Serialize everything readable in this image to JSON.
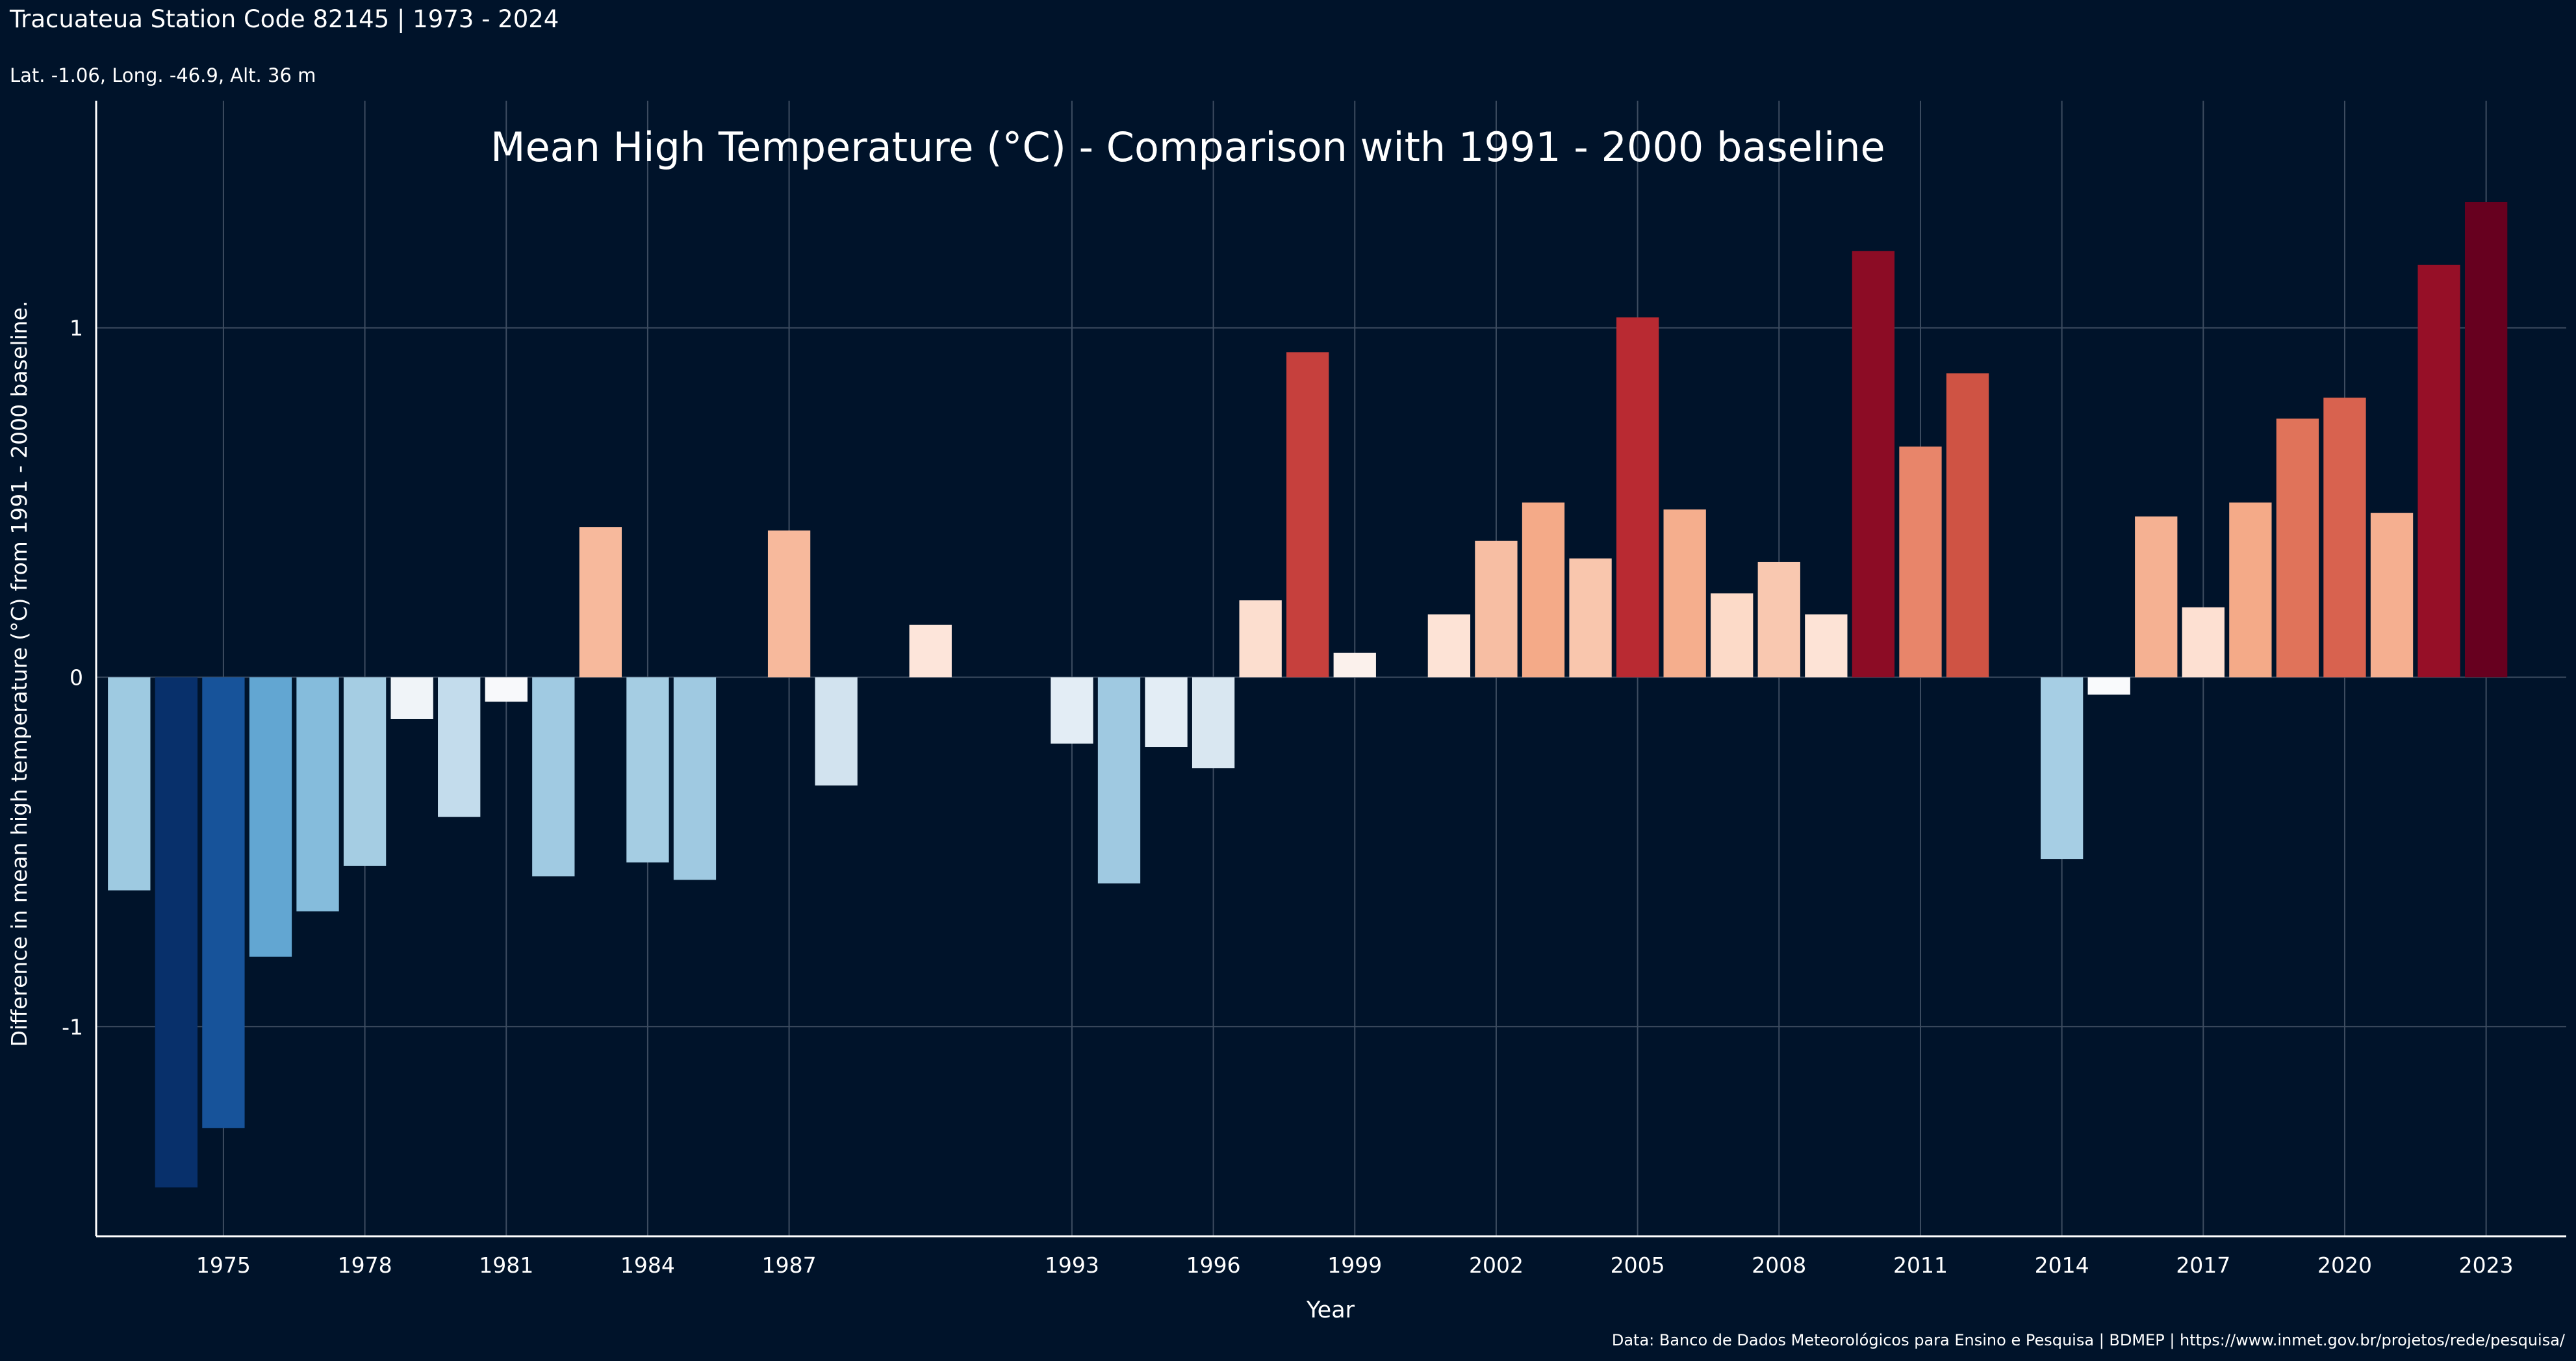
{
  "header": {
    "station_title": "Tracuateua Station Code 82145 | 1973 - 2024",
    "station_coords": "Lat. -1.06, Long. -46.9, Alt. 36 m"
  },
  "footer": {
    "source": "Data: Banco de Dados Meteorológicos para Ensino e Pesquisa | BDMEP | https://www.inmet.gov.br/projetos/rede/pesquisa/"
  },
  "chart_data": {
    "type": "bar",
    "title": "Mean High Temperature (°C) - Comparison with 1991 - 2000 baseline",
    "xlabel": "Year",
    "ylabel": "Difference in mean high temperature (°C) from 1991 - 2000 baseline.",
    "x_range": [
      1972.3,
      2024.7
    ],
    "ylim": [
      -1.6,
      1.65
    ],
    "y_ticks": [
      -1,
      0,
      1
    ],
    "x_ticks": [
      1975,
      1978,
      1981,
      1984,
      1987,
      1993,
      1996,
      1999,
      2002,
      2005,
      2008,
      2011,
      2014,
      2017,
      2020,
      2023
    ],
    "grid": true,
    "legend": "none",
    "color_scale": "diverging blue-white-red",
    "colors": {
      "background": "#00132a",
      "grid": "#3d4c60",
      "axis": "#ffffff",
      "text": "#ffffff"
    },
    "bars": [
      {
        "year": 1973,
        "value": -0.61,
        "color": "#9ecae1"
      },
      {
        "year": 1974,
        "value": -1.46,
        "color": "#08306b"
      },
      {
        "year": 1975,
        "value": -1.29,
        "color": "#17539a"
      },
      {
        "year": 1976,
        "value": -0.8,
        "color": "#62a6d2"
      },
      {
        "year": 1977,
        "value": -0.67,
        "color": "#85bcdc"
      },
      {
        "year": 1978,
        "value": -0.54,
        "color": "#a5cde3"
      },
      {
        "year": 1979,
        "value": -0.12,
        "color": "#f0f4f8"
      },
      {
        "year": 1980,
        "value": -0.4,
        "color": "#c3dcec"
      },
      {
        "year": 1981,
        "value": -0.07,
        "color": "#f8f9fb"
      },
      {
        "year": 1982,
        "value": -0.57,
        "color": "#a0cae2"
      },
      {
        "year": 1983,
        "value": 0.43,
        "color": "#f7b99c"
      },
      {
        "year": 1984,
        "value": -0.53,
        "color": "#a5cde3"
      },
      {
        "year": 1985,
        "value": -0.58,
        "color": "#9fc9e1"
      },
      {
        "year": 1987,
        "value": 0.42,
        "color": "#f7b99c"
      },
      {
        "year": 1988,
        "value": -0.31,
        "color": "#d2e3ef"
      },
      {
        "year": 1990,
        "value": 0.15,
        "color": "#fde5da"
      },
      {
        "year": 1993,
        "value": -0.19,
        "color": "#e3edf5"
      },
      {
        "year": 1994,
        "value": -0.59,
        "color": "#9fc9e1"
      },
      {
        "year": 1995,
        "value": -0.2,
        "color": "#e3edf5"
      },
      {
        "year": 1996,
        "value": -0.26,
        "color": "#d9e7f1"
      },
      {
        "year": 1997,
        "value": 0.22,
        "color": "#fcdecf"
      },
      {
        "year": 1998,
        "value": 0.93,
        "color": "#c6403d"
      },
      {
        "year": 1999,
        "value": 0.07,
        "color": "#fbf1ec"
      },
      {
        "year": 2001,
        "value": 0.18,
        "color": "#fde3d6"
      },
      {
        "year": 2002,
        "value": 0.39,
        "color": "#f7bea3"
      },
      {
        "year": 2003,
        "value": 0.5,
        "color": "#f4aa88"
      },
      {
        "year": 2004,
        "value": 0.34,
        "color": "#f9c6ad"
      },
      {
        "year": 2005,
        "value": 1.03,
        "color": "#b92a32"
      },
      {
        "year": 2006,
        "value": 0.48,
        "color": "#f5ae8d"
      },
      {
        "year": 2007,
        "value": 0.24,
        "color": "#fcdac8"
      },
      {
        "year": 2008,
        "value": 0.33,
        "color": "#f9c8b0"
      },
      {
        "year": 2009,
        "value": 0.18,
        "color": "#fde3d6"
      },
      {
        "year": 2010,
        "value": 1.22,
        "color": "#8c0c25"
      },
      {
        "year": 2011,
        "value": 0.66,
        "color": "#e8856a"
      },
      {
        "year": 2012,
        "value": 0.87,
        "color": "#cf5344"
      },
      {
        "year": 2014,
        "value": -0.52,
        "color": "#a6cee4"
      },
      {
        "year": 2015,
        "value": -0.05,
        "color": "#f9fafc"
      },
      {
        "year": 2016,
        "value": 0.46,
        "color": "#f5b192"
      },
      {
        "year": 2017,
        "value": 0.2,
        "color": "#fde0d2"
      },
      {
        "year": 2018,
        "value": 0.5,
        "color": "#f4aa88"
      },
      {
        "year": 2019,
        "value": 0.74,
        "color": "#e0735a"
      },
      {
        "year": 2020,
        "value": 0.8,
        "color": "#d8624f"
      },
      {
        "year": 2021,
        "value": 0.47,
        "color": "#f5af90"
      },
      {
        "year": 2022,
        "value": 1.18,
        "color": "#960f27"
      },
      {
        "year": 2023,
        "value": 1.36,
        "color": "#67001f"
      }
    ]
  }
}
